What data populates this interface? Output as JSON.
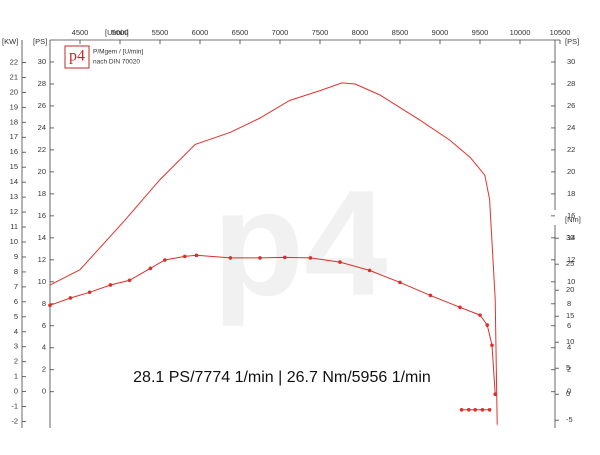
{
  "chart_data": {
    "type": "line",
    "logo": "p4",
    "legend_line1": "P/Mgem / [U/min]",
    "legend_line2": "nach DIN 70020",
    "annotation": "28.1 PS/7774 1/min | 26.7 Nm/5956 1/min",
    "x_label": "[U/min]",
    "y_label_kw": "[KW]",
    "y_label": "[PS]",
    "y_label_right": "[PS]",
    "y2_label": "[Nm]",
    "xlim": [
      4125,
      10500
    ],
    "xticks": [
      4500,
      5000,
      5500,
      6000,
      6500,
      7000,
      7500,
      8000,
      8500,
      9000,
      9500,
      10000,
      10500
    ],
    "ylim": [
      -3.3,
      32
    ],
    "yticks": [
      0,
      2,
      4,
      6,
      8,
      10,
      12,
      14,
      16,
      18,
      20,
      22,
      24,
      26,
      28,
      30
    ],
    "kw_lim": [
      -2.43,
      23.5
    ],
    "kw_ticks": [
      -2,
      -1,
      0,
      1,
      2,
      3,
      4,
      5,
      6,
      7,
      8,
      9,
      10,
      11,
      12,
      13,
      14,
      15,
      16,
      17,
      18,
      19,
      20,
      21,
      22
    ],
    "y2lim": [
      -6.5,
      68.1
    ],
    "y2ticks": [
      -5,
      0,
      5,
      10,
      15,
      20,
      25,
      30
    ],
    "series": [
      {
        "color": "#e2322c",
        "markers": false,
        "x": [
          4125,
          4500,
          5060,
          5500,
          5940,
          6380,
          6750,
          7120,
          7500,
          7774,
          7940,
          8250,
          8750,
          9120,
          9380,
          9560,
          9620,
          9690,
          9715
        ],
        "values": [
          9.7,
          11.1,
          15.6,
          19.3,
          22.5,
          23.6,
          24.9,
          26.5,
          27.4,
          28.1,
          28.0,
          27.0,
          24.7,
          22.9,
          21.3,
          19.7,
          17.5,
          8.4,
          -3
        ]
      },
      {
        "color": "#d9302b",
        "markers": true,
        "axis": "y2",
        "x": [
          4125,
          4380,
          4620,
          4880,
          5120,
          5380,
          5560,
          5810,
          5956,
          6380,
          6750,
          7060,
          7380,
          7750,
          8120,
          8500,
          8880,
          9250,
          9500,
          9590,
          9650,
          9690
        ],
        "values": [
          17.1,
          18.5,
          19.6,
          21,
          21.9,
          24.2,
          25.8,
          26.5,
          26.7,
          26.2,
          26.2,
          26.3,
          26.2,
          25.4,
          23.8,
          21.5,
          19,
          16.7,
          15.2,
          13.3,
          9.4,
          0
        ]
      },
      {
        "color": "#d9302b",
        "markers": true,
        "axis": "y2",
        "x": [
          9270,
          9360,
          9440,
          9530,
          9620
        ],
        "values": [
          -3,
          -3,
          -3,
          -3,
          -3
        ]
      }
    ]
  }
}
